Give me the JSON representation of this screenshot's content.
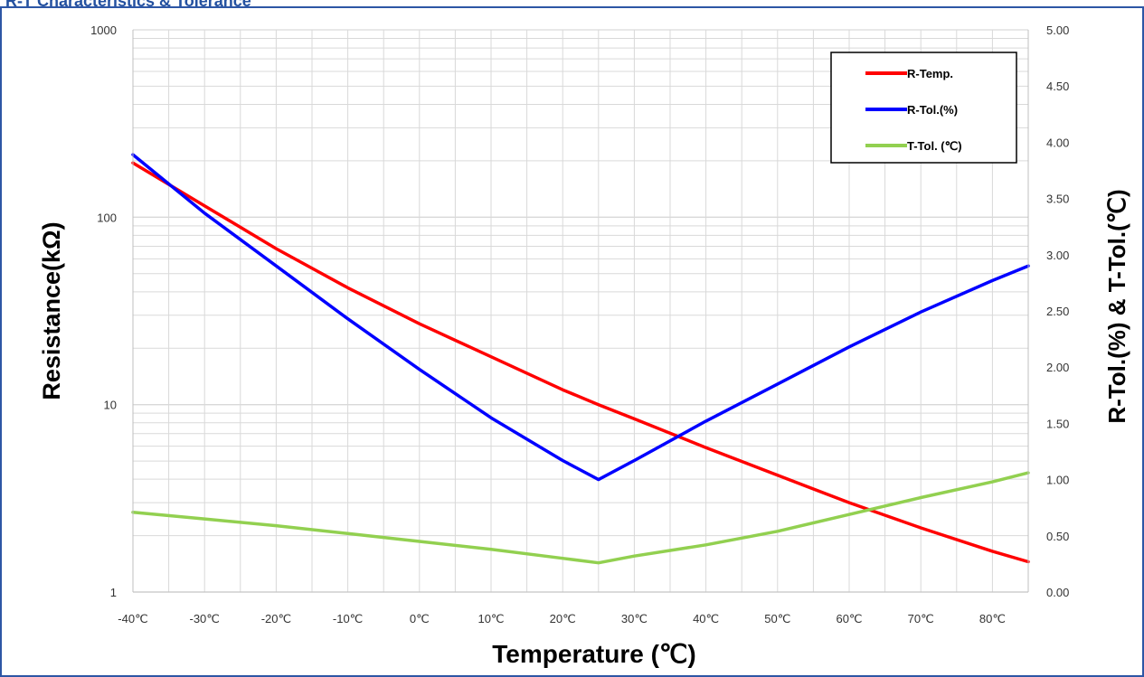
{
  "page": {
    "title": "R-T Characteristics & Tolerance"
  },
  "colors": {
    "frame": "#2d56a5",
    "grid": "#d9d9d9",
    "r_temp": "#ff0000",
    "r_tol": "#0000ff",
    "t_tol": "#92d050"
  },
  "chart_data": {
    "type": "line",
    "xlabel": "Temperature (℃)",
    "ylabel": "Resistance(kΩ)",
    "y2label": "R-Tol.(%) & T-Tol.(℃)",
    "x_ticks": [
      "-40℃",
      "-30℃",
      "-20℃",
      "-10℃",
      "0℃",
      "10℃",
      "20℃",
      "30℃",
      "40℃",
      "50℃",
      "60℃",
      "70℃",
      "80℃"
    ],
    "xlim": [
      -40,
      85
    ],
    "ylim": [
      1,
      1000
    ],
    "y_scale": "log",
    "y_ticks": [
      "1",
      "10",
      "100",
      "1000"
    ],
    "y2lim": [
      0,
      5
    ],
    "y2_ticks": [
      "0.00",
      "0.50",
      "1.00",
      "1.50",
      "2.00",
      "2.50",
      "3.00",
      "3.50",
      "4.00",
      "4.50",
      "5.00"
    ],
    "grid": true,
    "legend_position": "top-right",
    "series": [
      {
        "name": "R-Temp.",
        "axis": "left",
        "x": [
          -40,
          -30,
          -20,
          -10,
          0,
          10,
          20,
          25,
          30,
          40,
          50,
          60,
          70,
          80,
          85
        ],
        "values": [
          195,
          115,
          68,
          42,
          27,
          18,
          12,
          10,
          8.4,
          5.9,
          4.2,
          3.0,
          2.2,
          1.65,
          1.45
        ]
      },
      {
        "name": "R-Tol.(%)",
        "axis": "right",
        "x": [
          -40,
          -30,
          -20,
          -10,
          0,
          10,
          20,
          25,
          30,
          40,
          50,
          60,
          70,
          80,
          85
        ],
        "values": [
          3.89,
          3.37,
          2.9,
          2.43,
          1.98,
          1.55,
          1.17,
          1.0,
          1.17,
          1.52,
          1.85,
          2.18,
          2.49,
          2.77,
          2.9
        ]
      },
      {
        "name": "T-Tol. (℃)",
        "axis": "right",
        "x": [
          -40,
          -30,
          -20,
          -10,
          0,
          10,
          20,
          25,
          30,
          40,
          50,
          60,
          70,
          80,
          85
        ],
        "values": [
          0.71,
          0.65,
          0.59,
          0.52,
          0.45,
          0.38,
          0.3,
          0.26,
          0.32,
          0.42,
          0.54,
          0.69,
          0.84,
          0.98,
          1.06
        ]
      }
    ]
  }
}
